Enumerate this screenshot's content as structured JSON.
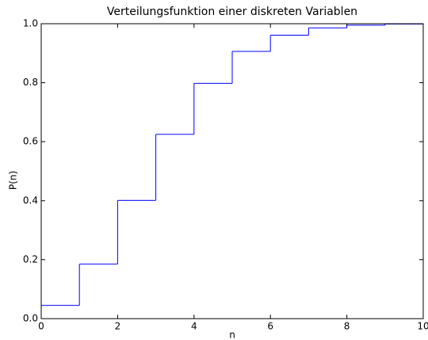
{
  "chart_data": {
    "type": "step",
    "title": "Verteilungsfunktion einer diskreten Variablen",
    "xlabel": "n",
    "ylabel": "P(n)",
    "x": [
      0,
      1,
      2,
      3,
      4,
      5,
      6,
      7,
      8,
      9,
      10
    ],
    "values": [
      0.045,
      0.185,
      0.401,
      0.625,
      0.798,
      0.906,
      0.961,
      0.986,
      0.995,
      0.999,
      1.0
    ],
    "color": "#0000ff",
    "xlim": [
      0,
      10
    ],
    "xticks": [
      0,
      2,
      4,
      6,
      8,
      10
    ],
    "ylim": [
      0,
      1
    ],
    "yticks": [
      {
        "value": 0,
        "label": "0.0"
      },
      0.2,
      0.4,
      0.6,
      0.8,
      {
        "value": 1,
        "label": "1.0"
      }
    ]
  }
}
